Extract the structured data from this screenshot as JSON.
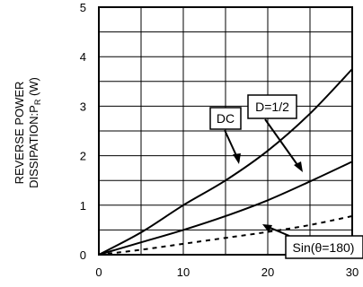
{
  "chart_data": {
    "type": "line",
    "title": "",
    "ylabel_line1": "REVERSE POWER",
    "ylabel_line2_main": "DISSIPATION:P",
    "ylabel_line2_sub": "R",
    "ylabel_line2_unit": " (W)",
    "xlim": [
      0,
      30
    ],
    "ylim": [
      0,
      5
    ],
    "x_ticks": [
      0,
      10,
      20,
      30
    ],
    "y_ticks": [
      0,
      1,
      2,
      3,
      4,
      5
    ],
    "grid": true,
    "series": [
      {
        "name": "DC",
        "style": "solid",
        "x": [
          0,
          5,
          10,
          15,
          20,
          25,
          30
        ],
        "y": [
          0,
          0.45,
          1.0,
          1.5,
          2.1,
          2.85,
          3.75
        ]
      },
      {
        "name": "D=1/2",
        "style": "solid",
        "x": [
          0,
          5,
          10,
          15,
          20,
          25,
          30
        ],
        "y": [
          0,
          0.25,
          0.5,
          0.78,
          1.1,
          1.48,
          1.88
        ]
      },
      {
        "name": "Sin(θ=180)",
        "style": "dashed",
        "x": [
          0,
          5,
          10,
          15,
          20,
          25,
          30
        ],
        "y": [
          0,
          0.1,
          0.22,
          0.34,
          0.46,
          0.6,
          0.78
        ]
      }
    ]
  }
}
